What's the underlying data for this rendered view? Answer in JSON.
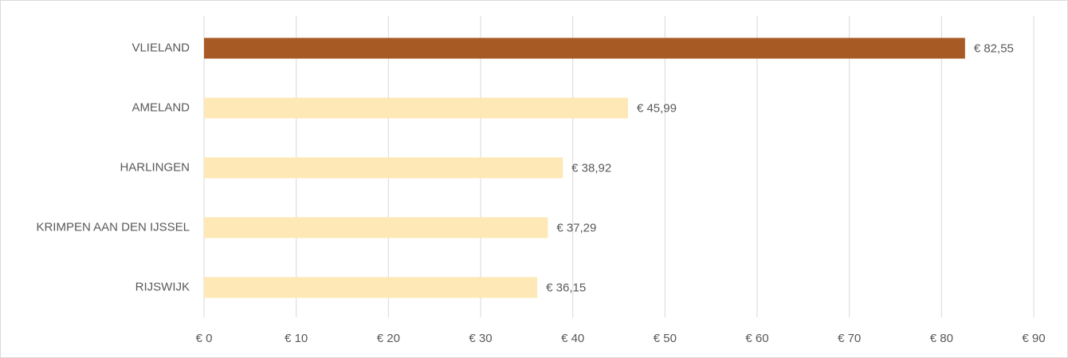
{
  "chart_data": {
    "type": "barh",
    "categories": [
      "VLIELAND",
      "AMELAND",
      "HARLINGEN",
      "KRIMPEN AAN DEN IJSSEL",
      "RIJSWIJK"
    ],
    "values": [
      82.55,
      45.99,
      38.92,
      37.29,
      36.15
    ],
    "value_labels": [
      "€ 82,55",
      "€ 45,99",
      "€ 38,92",
      "€ 37,29",
      "€ 36,15"
    ],
    "colors": [
      "#a85a25",
      "#fde8b6",
      "#fde8b6",
      "#fde8b6",
      "#fde8b6"
    ],
    "xlim": [
      0,
      90
    ],
    "xticks": [
      {
        "value": 0,
        "label": "€ 0"
      },
      {
        "value": 10,
        "label": "€ 10"
      },
      {
        "value": 20,
        "label": "€ 20"
      },
      {
        "value": 30,
        "label": "€ 30"
      },
      {
        "value": 40,
        "label": "€ 40"
      },
      {
        "value": 50,
        "label": "€ 50"
      },
      {
        "value": 60,
        "label": "€ 60"
      },
      {
        "value": 70,
        "label": "€ 70"
      },
      {
        "value": 80,
        "label": "€ 80"
      },
      {
        "value": 90,
        "label": "€ 90"
      }
    ],
    "grid": true
  }
}
